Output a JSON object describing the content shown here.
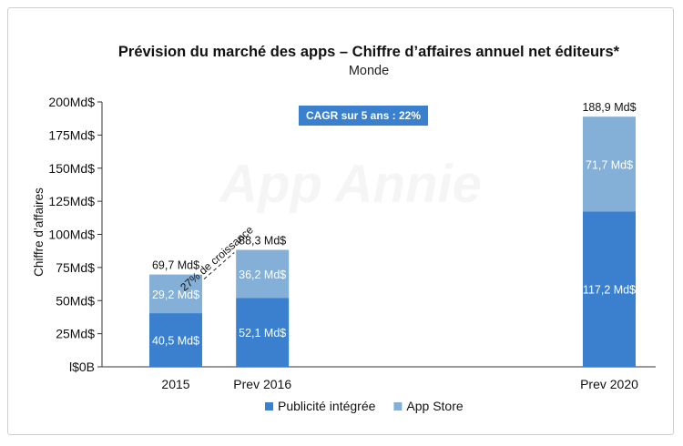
{
  "chart_data": {
    "type": "bar",
    "stacked": true,
    "title": "Prévision du marché des apps – Chiffre d’affaires annuel net éditeurs*",
    "subtitle": "Monde",
    "xlabel": "",
    "ylabel": "Chiffre d’affaires",
    "ylim": [
      0,
      200
    ],
    "yticks": [
      0,
      25,
      50,
      75,
      100,
      125,
      150,
      175,
      200
    ],
    "ytick_labels": [
      "l$0B",
      "25Md$",
      "50Md$",
      "75Md$",
      "100Md$",
      "125Md$",
      "150Md$",
      "175Md$",
      "200Md$"
    ],
    "categories": [
      "2015",
      "Prev 2016",
      "Prev 2020"
    ],
    "category_positions": [
      2015,
      2016,
      2020
    ],
    "series": [
      {
        "name": "Publicité intégrée",
        "color": "#3a80cf",
        "values": [
          40.5,
          52.1,
          117.2
        ],
        "labels": [
          "40,5 Md$",
          "52,1 Md$",
          "117,2 Md$"
        ]
      },
      {
        "name": "App Store",
        "color": "#84afd6",
        "values": [
          29.2,
          36.2,
          71.7
        ],
        "labels": [
          "29,2 Md$",
          "36,2 Md$",
          "71,7 Md$"
        ]
      }
    ],
    "totals": [
      69.7,
      88.3,
      188.9
    ],
    "total_labels": [
      "69,7 Md$",
      "88,3 Md$",
      "188,9 Md$"
    ],
    "legend_position": "bottom",
    "grid": false,
    "annotations": {
      "cagr_badge": "CAGR sur 5 ans : 22%",
      "growth": "27% de croissance"
    },
    "watermark": "App Annie"
  }
}
